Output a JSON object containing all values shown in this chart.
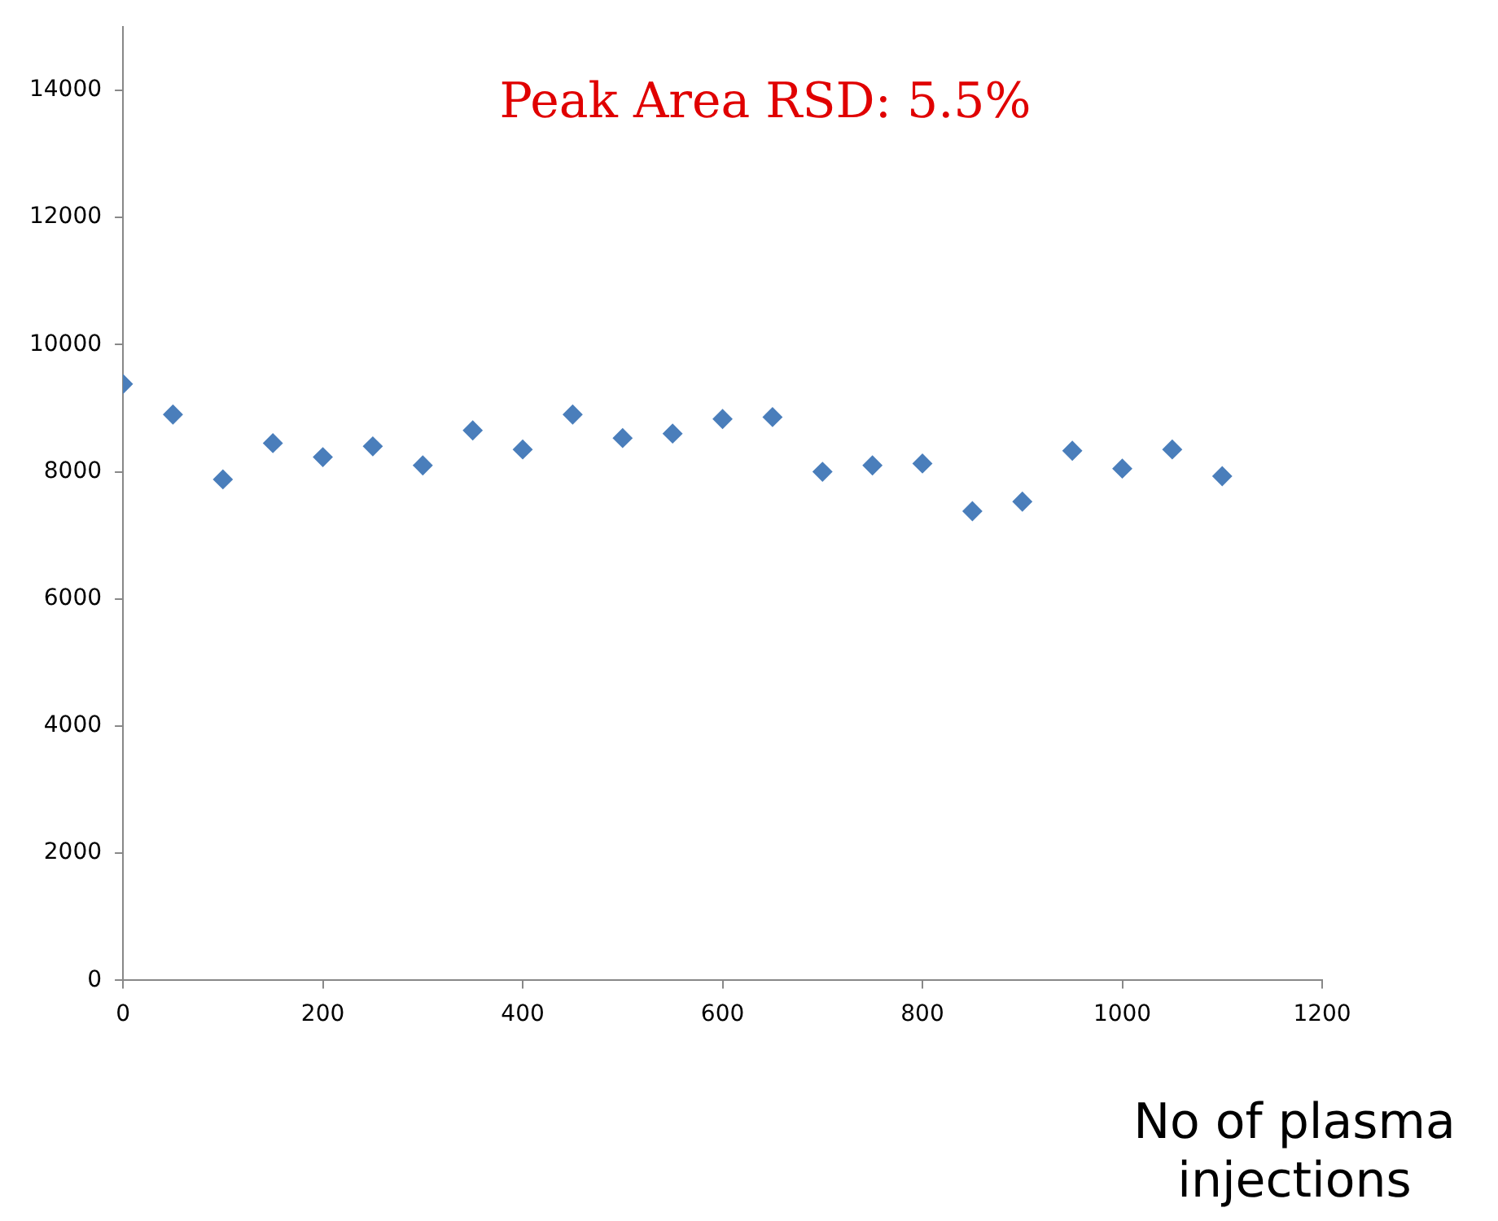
{
  "chart_data": {
    "type": "scatter",
    "xlabel": "No of plasma injections",
    "annotations": [
      "Peak Area RSD: 5.5%"
    ],
    "x": [
      0,
      50,
      100,
      150,
      200,
      250,
      300,
      350,
      400,
      450,
      500,
      550,
      600,
      650,
      700,
      750,
      800,
      850,
      900,
      950,
      1000,
      1050,
      1100
    ],
    "series": [
      {
        "color": "#4a7ebb",
        "values": [
          9380,
          8900,
          7880,
          8450,
          8230,
          8400,
          8100,
          8650,
          8350,
          8900,
          8530,
          8600,
          8830,
          8860,
          8000,
          8100,
          8130,
          7380,
          7530,
          8330,
          8050,
          8350,
          7930
        ]
      }
    ],
    "xlim": [
      0,
      1200
    ],
    "xticks": [
      0,
      200,
      400,
      600,
      800,
      1000,
      1200
    ],
    "ylim": [
      0,
      15000
    ],
    "yticks": [
      0,
      2000,
      4000,
      6000,
      8000,
      10000,
      12000,
      14000
    ],
    "grid": false,
    "legend": false,
    "marker": "diamond"
  }
}
